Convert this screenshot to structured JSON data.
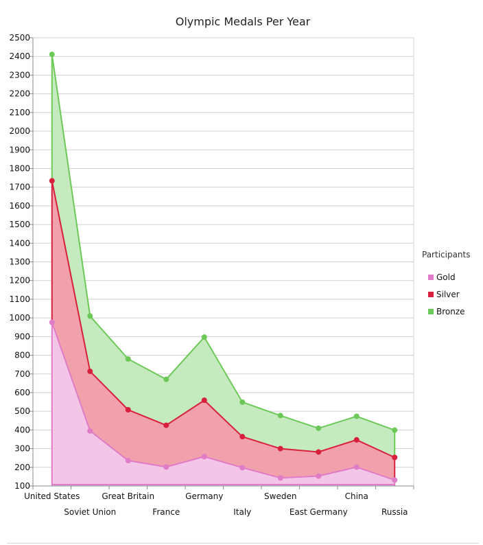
{
  "chart_data": {
    "type": "area",
    "stacked": true,
    "title": "Olympic Medals Per Year",
    "xlabel": "",
    "ylabel": "",
    "ylim": [
      100,
      2500
    ],
    "ytick_step": 100,
    "grid": true,
    "legend_placement": "right",
    "legend_title": "Participants",
    "categories": [
      "United States",
      "Soviet Union",
      "Great Britain",
      "France",
      "Germany",
      "Italy",
      "Sweden",
      "East Germany",
      "China",
      "Russia"
    ],
    "series": [
      {
        "name": "Gold",
        "color": "#e07bc8",
        "fill": "#f3c6e8",
        "values": [
          976,
          395,
          236,
          202,
          257,
          198,
          143,
          153,
          201,
          132
        ]
      },
      {
        "name": "Silver",
        "color": "#d81f3c",
        "fill": "#f0a1ab",
        "values": [
          758,
          319,
          272,
          223,
          302,
          166,
          157,
          129,
          146,
          121
        ]
      },
      {
        "name": "Bronze",
        "color": "#6cc957",
        "fill": "#c5eabf",
        "values": [
          677,
          296,
          272,
          246,
          338,
          185,
          177,
          127,
          126,
          146
        ]
      }
    ]
  }
}
